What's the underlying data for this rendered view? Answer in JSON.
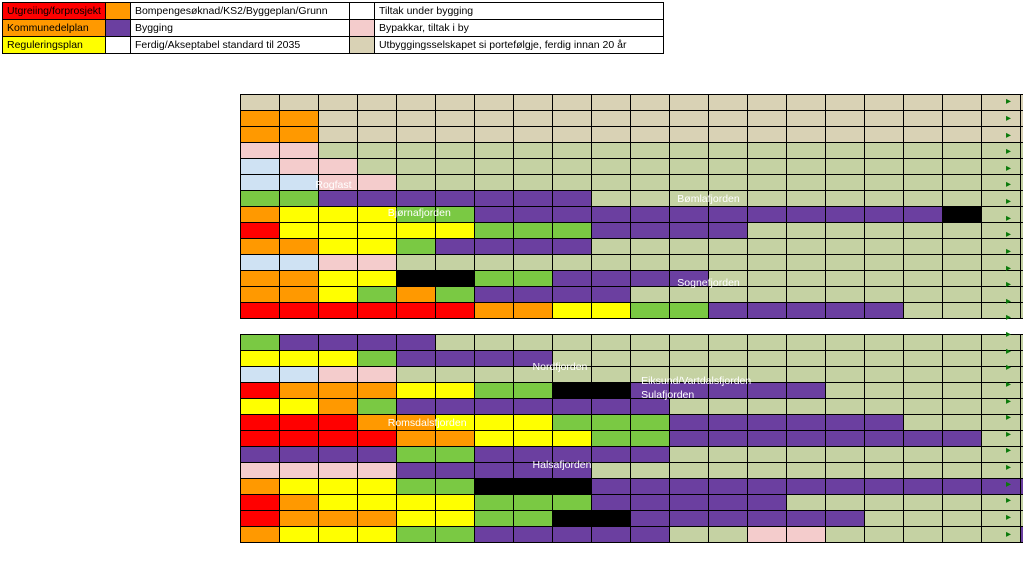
{
  "colors": {
    "red": "#ff0000",
    "orange": "#ff9900",
    "yellow": "#ffff00",
    "green": "#7ac943",
    "purple": "#6b3fa0",
    "lightblue": "#cfe2f3",
    "pink": "#f4cccc",
    "tan": "#d9d2b5",
    "oliveLight": "#c5d2a3",
    "black": "#000000",
    "white": "#ffffff"
  },
  "legend": {
    "rows": [
      {
        "c1": "red",
        "t1": "Utgreiing/forprosjekt",
        "c2": "orange",
        "t2": "Bompengesøknad/KS2/Byggeplan/Grunn",
        "c3": "white",
        "t3": "Tiltak under bygging"
      },
      {
        "c1": "orange",
        "t1": "Kommunedelplan",
        "c2": "purple",
        "t2": "Bygging",
        "c3": "pink",
        "t3": "Bypakkar, tiltak i by"
      },
      {
        "c1": "yellow",
        "t1": "Reguleringsplan",
        "c2": "white",
        "t2": "Ferdig/Akseptabel standard til 2035",
        "c3": "tan",
        "t3": "Utbyggingsselskapet si portefølgje, ferdig innan 20 år"
      }
    ]
  },
  "cols": 21,
  "rows": [
    [
      "tan",
      "tan",
      "tan",
      "tan",
      "tan",
      "tan",
      "tan",
      "tan",
      "tan",
      "tan",
      "tan",
      "tan",
      "tan",
      "tan",
      "tan",
      "tan",
      "tan",
      "tan",
      "tan",
      "tan",
      "tan"
    ],
    [
      "orange",
      "orange",
      "tan",
      "tan",
      "tan",
      "tan",
      "tan",
      "tan",
      "tan",
      "tan",
      "tan",
      "tan",
      "tan",
      "tan",
      "tan",
      "tan",
      "tan",
      "tan",
      "tan",
      "tan",
      "tan"
    ],
    [
      "orange",
      "orange",
      "tan",
      "tan",
      "tan",
      "tan",
      "tan",
      "tan",
      "tan",
      "tan",
      "tan",
      "tan",
      "tan",
      "tan",
      "tan",
      "tan",
      "tan",
      "tan",
      "tan",
      "tan",
      "tan"
    ],
    [
      "pink",
      "pink",
      "oliveLight",
      "oliveLight",
      "oliveLight",
      "oliveLight",
      "oliveLight",
      "oliveLight",
      "oliveLight",
      "oliveLight",
      "oliveLight",
      "oliveLight",
      "oliveLight",
      "oliveLight",
      "oliveLight",
      "oliveLight",
      "oliveLight",
      "oliveLight",
      "oliveLight",
      "oliveLight",
      "oliveLight"
    ],
    [
      "lightblue",
      "pink",
      "pink",
      "oliveLight",
      "oliveLight",
      "oliveLight",
      "oliveLight",
      "oliveLight",
      "oliveLight",
      "oliveLight",
      "oliveLight",
      "oliveLight",
      "oliveLight",
      "oliveLight",
      "oliveLight",
      "oliveLight",
      "oliveLight",
      "oliveLight",
      "oliveLight",
      "oliveLight",
      "oliveLight"
    ],
    [
      "lightblue",
      "lightblue",
      "pink",
      "pink",
      "oliveLight",
      "oliveLight",
      "oliveLight",
      "oliveLight",
      "oliveLight",
      "oliveLight",
      "oliveLight",
      "oliveLight",
      "oliveLight",
      "oliveLight",
      "oliveLight",
      "oliveLight",
      "oliveLight",
      "oliveLight",
      "oliveLight",
      "oliveLight",
      "oliveLight"
    ],
    [
      "green",
      "green",
      "purple",
      "purple",
      "purple",
      "purple",
      "purple",
      "purple",
      "purple",
      "oliveLight",
      "oliveLight",
      "oliveLight",
      "oliveLight",
      "oliveLight",
      "oliveLight",
      "oliveLight",
      "oliveLight",
      "oliveLight",
      "oliveLight",
      "oliveLight",
      "oliveLight"
    ],
    [
      "orange",
      "yellow",
      "yellow",
      "yellow",
      "green",
      "green",
      "purple",
      "purple",
      "purple",
      "purple",
      "purple",
      "purple",
      "purple",
      "purple",
      "purple",
      "purple",
      "purple",
      "purple",
      "black",
      "oliveLight",
      "oliveLight"
    ],
    [
      "red",
      "yellow",
      "yellow",
      "yellow",
      "yellow",
      "yellow",
      "green",
      "green",
      "green",
      "purple",
      "purple",
      "purple",
      "purple",
      "oliveLight",
      "oliveLight",
      "oliveLight",
      "oliveLight",
      "oliveLight",
      "oliveLight",
      "oliveLight",
      "oliveLight"
    ],
    [
      "orange",
      "orange",
      "yellow",
      "yellow",
      "green",
      "purple",
      "purple",
      "purple",
      "purple",
      "oliveLight",
      "oliveLight",
      "oliveLight",
      "oliveLight",
      "oliveLight",
      "oliveLight",
      "oliveLight",
      "oliveLight",
      "oliveLight",
      "oliveLight",
      "oliveLight",
      "oliveLight"
    ],
    [
      "lightblue",
      "lightblue",
      "pink",
      "pink",
      "oliveLight",
      "oliveLight",
      "oliveLight",
      "oliveLight",
      "oliveLight",
      "oliveLight",
      "oliveLight",
      "oliveLight",
      "oliveLight",
      "oliveLight",
      "oliveLight",
      "oliveLight",
      "oliveLight",
      "oliveLight",
      "oliveLight",
      "oliveLight",
      "oliveLight"
    ],
    [
      "orange",
      "orange",
      "yellow",
      "yellow",
      "black",
      "black",
      "green",
      "green",
      "purple",
      "purple",
      "purple",
      "purple",
      "oliveLight",
      "oliveLight",
      "oliveLight",
      "oliveLight",
      "oliveLight",
      "oliveLight",
      "oliveLight",
      "oliveLight",
      "oliveLight"
    ],
    [
      "orange",
      "orange",
      "yellow",
      "green",
      "orange",
      "green",
      "purple",
      "purple",
      "purple",
      "purple",
      "oliveLight",
      "oliveLight",
      "oliveLight",
      "oliveLight",
      "oliveLight",
      "oliveLight",
      "oliveLight",
      "oliveLight",
      "oliveLight",
      "oliveLight",
      "oliveLight"
    ],
    [
      "red",
      "red",
      "red",
      "red",
      "red",
      "red",
      "orange",
      "orange",
      "yellow",
      "yellow",
      "green",
      "green",
      "purple",
      "purple",
      "purple",
      "purple",
      "purple",
      "oliveLight",
      "oliveLight",
      "oliveLight",
      "oliveLight"
    ],
    "blank",
    [
      "green",
      "purple",
      "purple",
      "purple",
      "purple",
      "oliveLight",
      "oliveLight",
      "oliveLight",
      "oliveLight",
      "oliveLight",
      "oliveLight",
      "oliveLight",
      "oliveLight",
      "oliveLight",
      "oliveLight",
      "oliveLight",
      "oliveLight",
      "oliveLight",
      "oliveLight",
      "oliveLight",
      "oliveLight"
    ],
    [
      "yellow",
      "yellow",
      "yellow",
      "green",
      "purple",
      "purple",
      "purple",
      "purple",
      "oliveLight",
      "oliveLight",
      "oliveLight",
      "oliveLight",
      "oliveLight",
      "oliveLight",
      "oliveLight",
      "oliveLight",
      "oliveLight",
      "oliveLight",
      "oliveLight",
      "oliveLight",
      "oliveLight"
    ],
    [
      "lightblue",
      "lightblue",
      "pink",
      "pink",
      "oliveLight",
      "oliveLight",
      "oliveLight",
      "oliveLight",
      "oliveLight",
      "oliveLight",
      "oliveLight",
      "oliveLight",
      "oliveLight",
      "oliveLight",
      "oliveLight",
      "oliveLight",
      "oliveLight",
      "oliveLight",
      "oliveLight",
      "oliveLight",
      "oliveLight"
    ],
    [
      "red",
      "orange",
      "orange",
      "orange",
      "yellow",
      "yellow",
      "green",
      "green",
      "black",
      "black",
      "purple",
      "purple",
      "purple",
      "purple",
      "purple",
      "oliveLight",
      "oliveLight",
      "oliveLight",
      "oliveLight",
      "oliveLight",
      "oliveLight"
    ],
    [
      "yellow",
      "yellow",
      "orange",
      "green",
      "purple",
      "purple",
      "purple",
      "purple",
      "purple",
      "purple",
      "purple",
      "oliveLight",
      "oliveLight",
      "oliveLight",
      "oliveLight",
      "oliveLight",
      "oliveLight",
      "oliveLight",
      "oliveLight",
      "oliveLight",
      "oliveLight"
    ],
    [
      "red",
      "red",
      "red",
      "orange",
      "orange",
      "yellow",
      "yellow",
      "yellow",
      "green",
      "green",
      "green",
      "purple",
      "purple",
      "purple",
      "purple",
      "purple",
      "purple",
      "oliveLight",
      "oliveLight",
      "oliveLight",
      "oliveLight"
    ],
    [
      "red",
      "red",
      "red",
      "red",
      "orange",
      "orange",
      "yellow",
      "yellow",
      "yellow",
      "green",
      "green",
      "purple",
      "purple",
      "purple",
      "purple",
      "purple",
      "purple",
      "purple",
      "purple",
      "oliveLight",
      "oliveLight"
    ],
    [
      "purple",
      "purple",
      "purple",
      "purple",
      "green",
      "green",
      "purple",
      "purple",
      "purple",
      "purple",
      "purple",
      "oliveLight",
      "oliveLight",
      "oliveLight",
      "oliveLight",
      "oliveLight",
      "oliveLight",
      "oliveLight",
      "oliveLight",
      "oliveLight",
      "oliveLight"
    ],
    [
      "pink",
      "pink",
      "pink",
      "pink",
      "purple",
      "purple",
      "purple",
      "purple",
      "purple",
      "oliveLight",
      "oliveLight",
      "oliveLight",
      "oliveLight",
      "oliveLight",
      "oliveLight",
      "oliveLight",
      "oliveLight",
      "oliveLight",
      "oliveLight",
      "oliveLight",
      "oliveLight"
    ],
    [
      "orange",
      "yellow",
      "yellow",
      "yellow",
      "green",
      "green",
      "black",
      "black",
      "black",
      "purple",
      "purple",
      "purple",
      "purple",
      "purple",
      "purple",
      "purple",
      "purple",
      "purple",
      "purple",
      "purple",
      "purple"
    ],
    [
      "red",
      "orange",
      "yellow",
      "yellow",
      "yellow",
      "yellow",
      "green",
      "green",
      "green",
      "purple",
      "purple",
      "purple",
      "purple",
      "purple",
      "oliveLight",
      "oliveLight",
      "oliveLight",
      "oliveLight",
      "oliveLight",
      "oliveLight",
      "oliveLight"
    ],
    [
      "red",
      "orange",
      "orange",
      "orange",
      "yellow",
      "yellow",
      "green",
      "green",
      "black",
      "black",
      "purple",
      "purple",
      "purple",
      "purple",
      "purple",
      "purple",
      "oliveLight",
      "oliveLight",
      "oliveLight",
      "oliveLight",
      "oliveLight"
    ],
    [
      "orange",
      "yellow",
      "yellow",
      "yellow",
      "green",
      "green",
      "purple",
      "purple",
      "purple",
      "purple",
      "purple",
      "oliveLight",
      "oliveLight",
      "pink",
      "pink",
      "oliveLight",
      "oliveLight",
      "oliveLight",
      "oliveLight",
      "oliveLight",
      "purple"
    ]
  ],
  "labels": [
    {
      "text": "Rogfast",
      "row": 6,
      "col": 2
    },
    {
      "text": "Bømlafjorden",
      "row": 7,
      "col": 12
    },
    {
      "text": "Bjørnafjorden",
      "row": 8,
      "col": 4
    },
    {
      "text": "Sognefjorden",
      "row": 13,
      "col": 12
    },
    {
      "text": "Nordfjorden",
      "row": 19,
      "col": 8
    },
    {
      "text": "Eiksund/Vartdalsfjorden",
      "row": 20,
      "col": 11
    },
    {
      "text": "Sulafjorden",
      "row": 21,
      "col": 11
    },
    {
      "text": "Romsdalsfjorden",
      "row": 23,
      "col": 4
    },
    {
      "text": "Halsafjorden",
      "row": 26,
      "col": 8
    }
  ]
}
